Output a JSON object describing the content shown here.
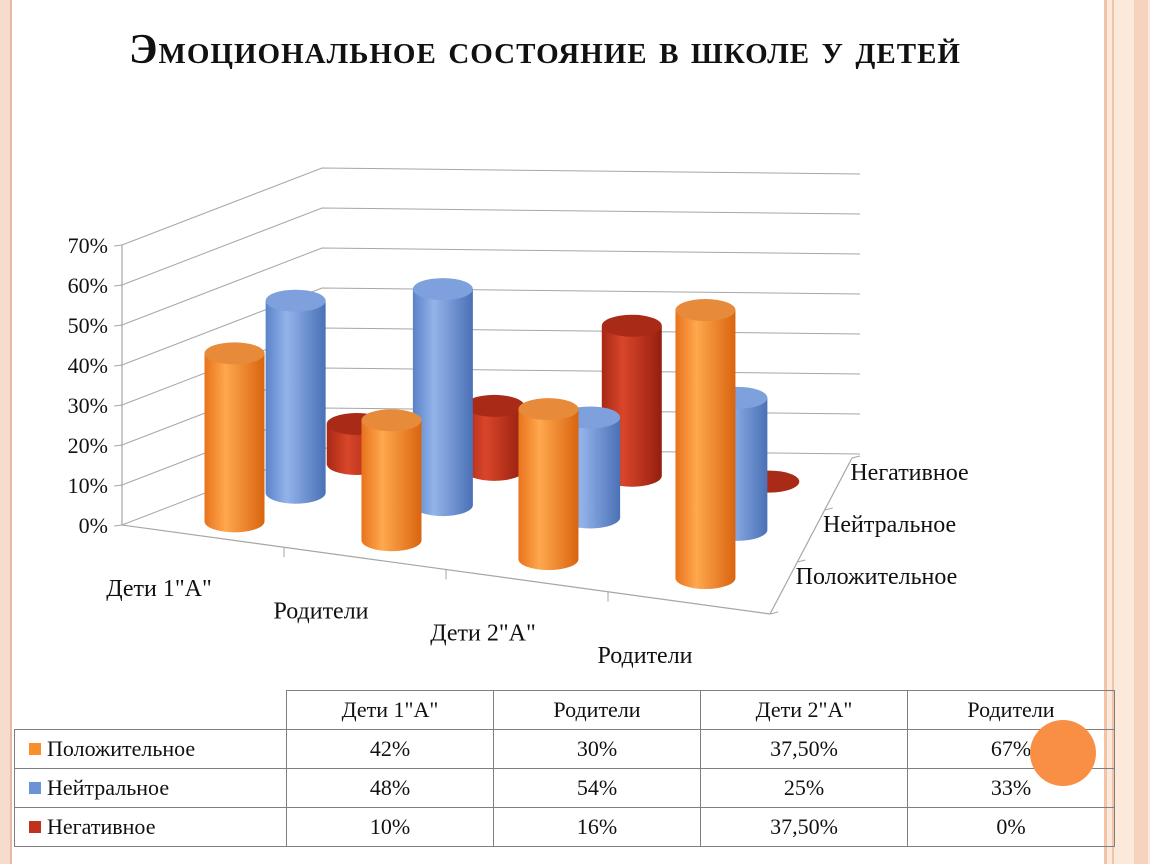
{
  "title": "Эмоциональное состояние в школе у детей",
  "chart_data": {
    "type": "bar",
    "subtype": "3d-cylinder",
    "categories": [
      "Дети 1\"А\"",
      "Родители",
      "Дети 2\"А\"",
      "Родители"
    ],
    "series": [
      {
        "name": "Положительное",
        "color": "#f98f2c",
        "values": [
          42,
          30,
          37.5,
          67
        ],
        "labels": [
          "42%",
          "30%",
          "37,50%",
          "67%"
        ]
      },
      {
        "name": "Нейтральное",
        "color": "#6b93d6",
        "values": [
          48,
          54,
          25,
          33
        ],
        "labels": [
          "48%",
          "54%",
          "25%",
          "33%"
        ]
      },
      {
        "name": "Негативное",
        "color": "#c0321d",
        "values": [
          10,
          16,
          37.5,
          0
        ],
        "labels": [
          "10%",
          "16%",
          "37,50%",
          "0%"
        ]
      }
    ],
    "depth_labels": [
      "Негативное",
      "Нейтральное",
      "Положительное"
    ],
    "yticks": [
      "0%",
      "10%",
      "20%",
      "30%",
      "40%",
      "50%",
      "60%",
      "70%"
    ],
    "ylim": [
      0,
      70
    ],
    "grid": true,
    "data_table": true
  }
}
